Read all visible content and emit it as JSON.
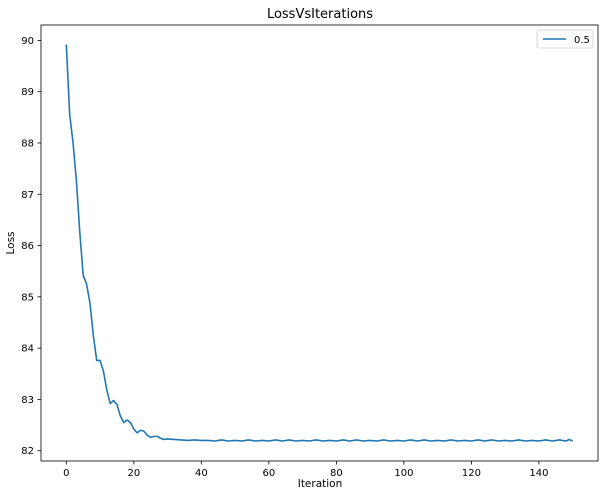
{
  "chart_data": {
    "type": "line",
    "title": "LossVsIterations",
    "xlabel": "Iteration",
    "ylabel": "Loss",
    "xlim": [
      -7.5,
      157.5
    ],
    "ylim": [
      81.8,
      90.3
    ],
    "xticks": [
      0,
      20,
      40,
      60,
      80,
      100,
      120,
      140
    ],
    "yticks": [
      82,
      83,
      84,
      85,
      86,
      87,
      88,
      89,
      90
    ],
    "grid": false,
    "legend": "top-right",
    "series": [
      {
        "name": "0.5",
        "color": "#1f77b4",
        "x": [
          0,
          1,
          2,
          3,
          4,
          5,
          6,
          7,
          8,
          9,
          10,
          11,
          12,
          13,
          14,
          15,
          16,
          17,
          18,
          19,
          20,
          21,
          22,
          23,
          24,
          25,
          26,
          27,
          28,
          29,
          30,
          32,
          34,
          36,
          38,
          40,
          42,
          44,
          46,
          48,
          50,
          52,
          54,
          56,
          58,
          60,
          62,
          64,
          66,
          68,
          70,
          72,
          74,
          76,
          78,
          80,
          82,
          84,
          86,
          88,
          90,
          92,
          94,
          96,
          98,
          100,
          102,
          104,
          106,
          108,
          110,
          112,
          114,
          116,
          118,
          120,
          122,
          124,
          126,
          128,
          130,
          132,
          134,
          136,
          138,
          140,
          142,
          144,
          146,
          148,
          149,
          150
        ],
        "values": [
          89.92,
          88.55,
          88.0,
          87.25,
          86.25,
          85.42,
          85.25,
          84.88,
          84.25,
          83.76,
          83.76,
          83.55,
          83.18,
          82.92,
          82.98,
          82.9,
          82.68,
          82.55,
          82.6,
          82.55,
          82.42,
          82.35,
          82.4,
          82.38,
          82.3,
          82.26,
          82.28,
          82.28,
          82.24,
          82.22,
          82.23,
          82.22,
          82.21,
          82.2,
          82.21,
          82.2,
          82.2,
          82.19,
          82.21,
          82.19,
          82.2,
          82.19,
          82.21,
          82.19,
          82.2,
          82.19,
          82.21,
          82.19,
          82.21,
          82.19,
          82.2,
          82.19,
          82.21,
          82.19,
          82.2,
          82.19,
          82.21,
          82.19,
          82.21,
          82.19,
          82.2,
          82.19,
          82.21,
          82.19,
          82.2,
          82.19,
          82.21,
          82.19,
          82.21,
          82.19,
          82.2,
          82.19,
          82.21,
          82.19,
          82.2,
          82.19,
          82.21,
          82.19,
          82.21,
          82.19,
          82.2,
          82.19,
          82.21,
          82.19,
          82.2,
          82.19,
          82.21,
          82.19,
          82.21,
          82.19,
          82.22,
          82.19
        ]
      }
    ]
  }
}
